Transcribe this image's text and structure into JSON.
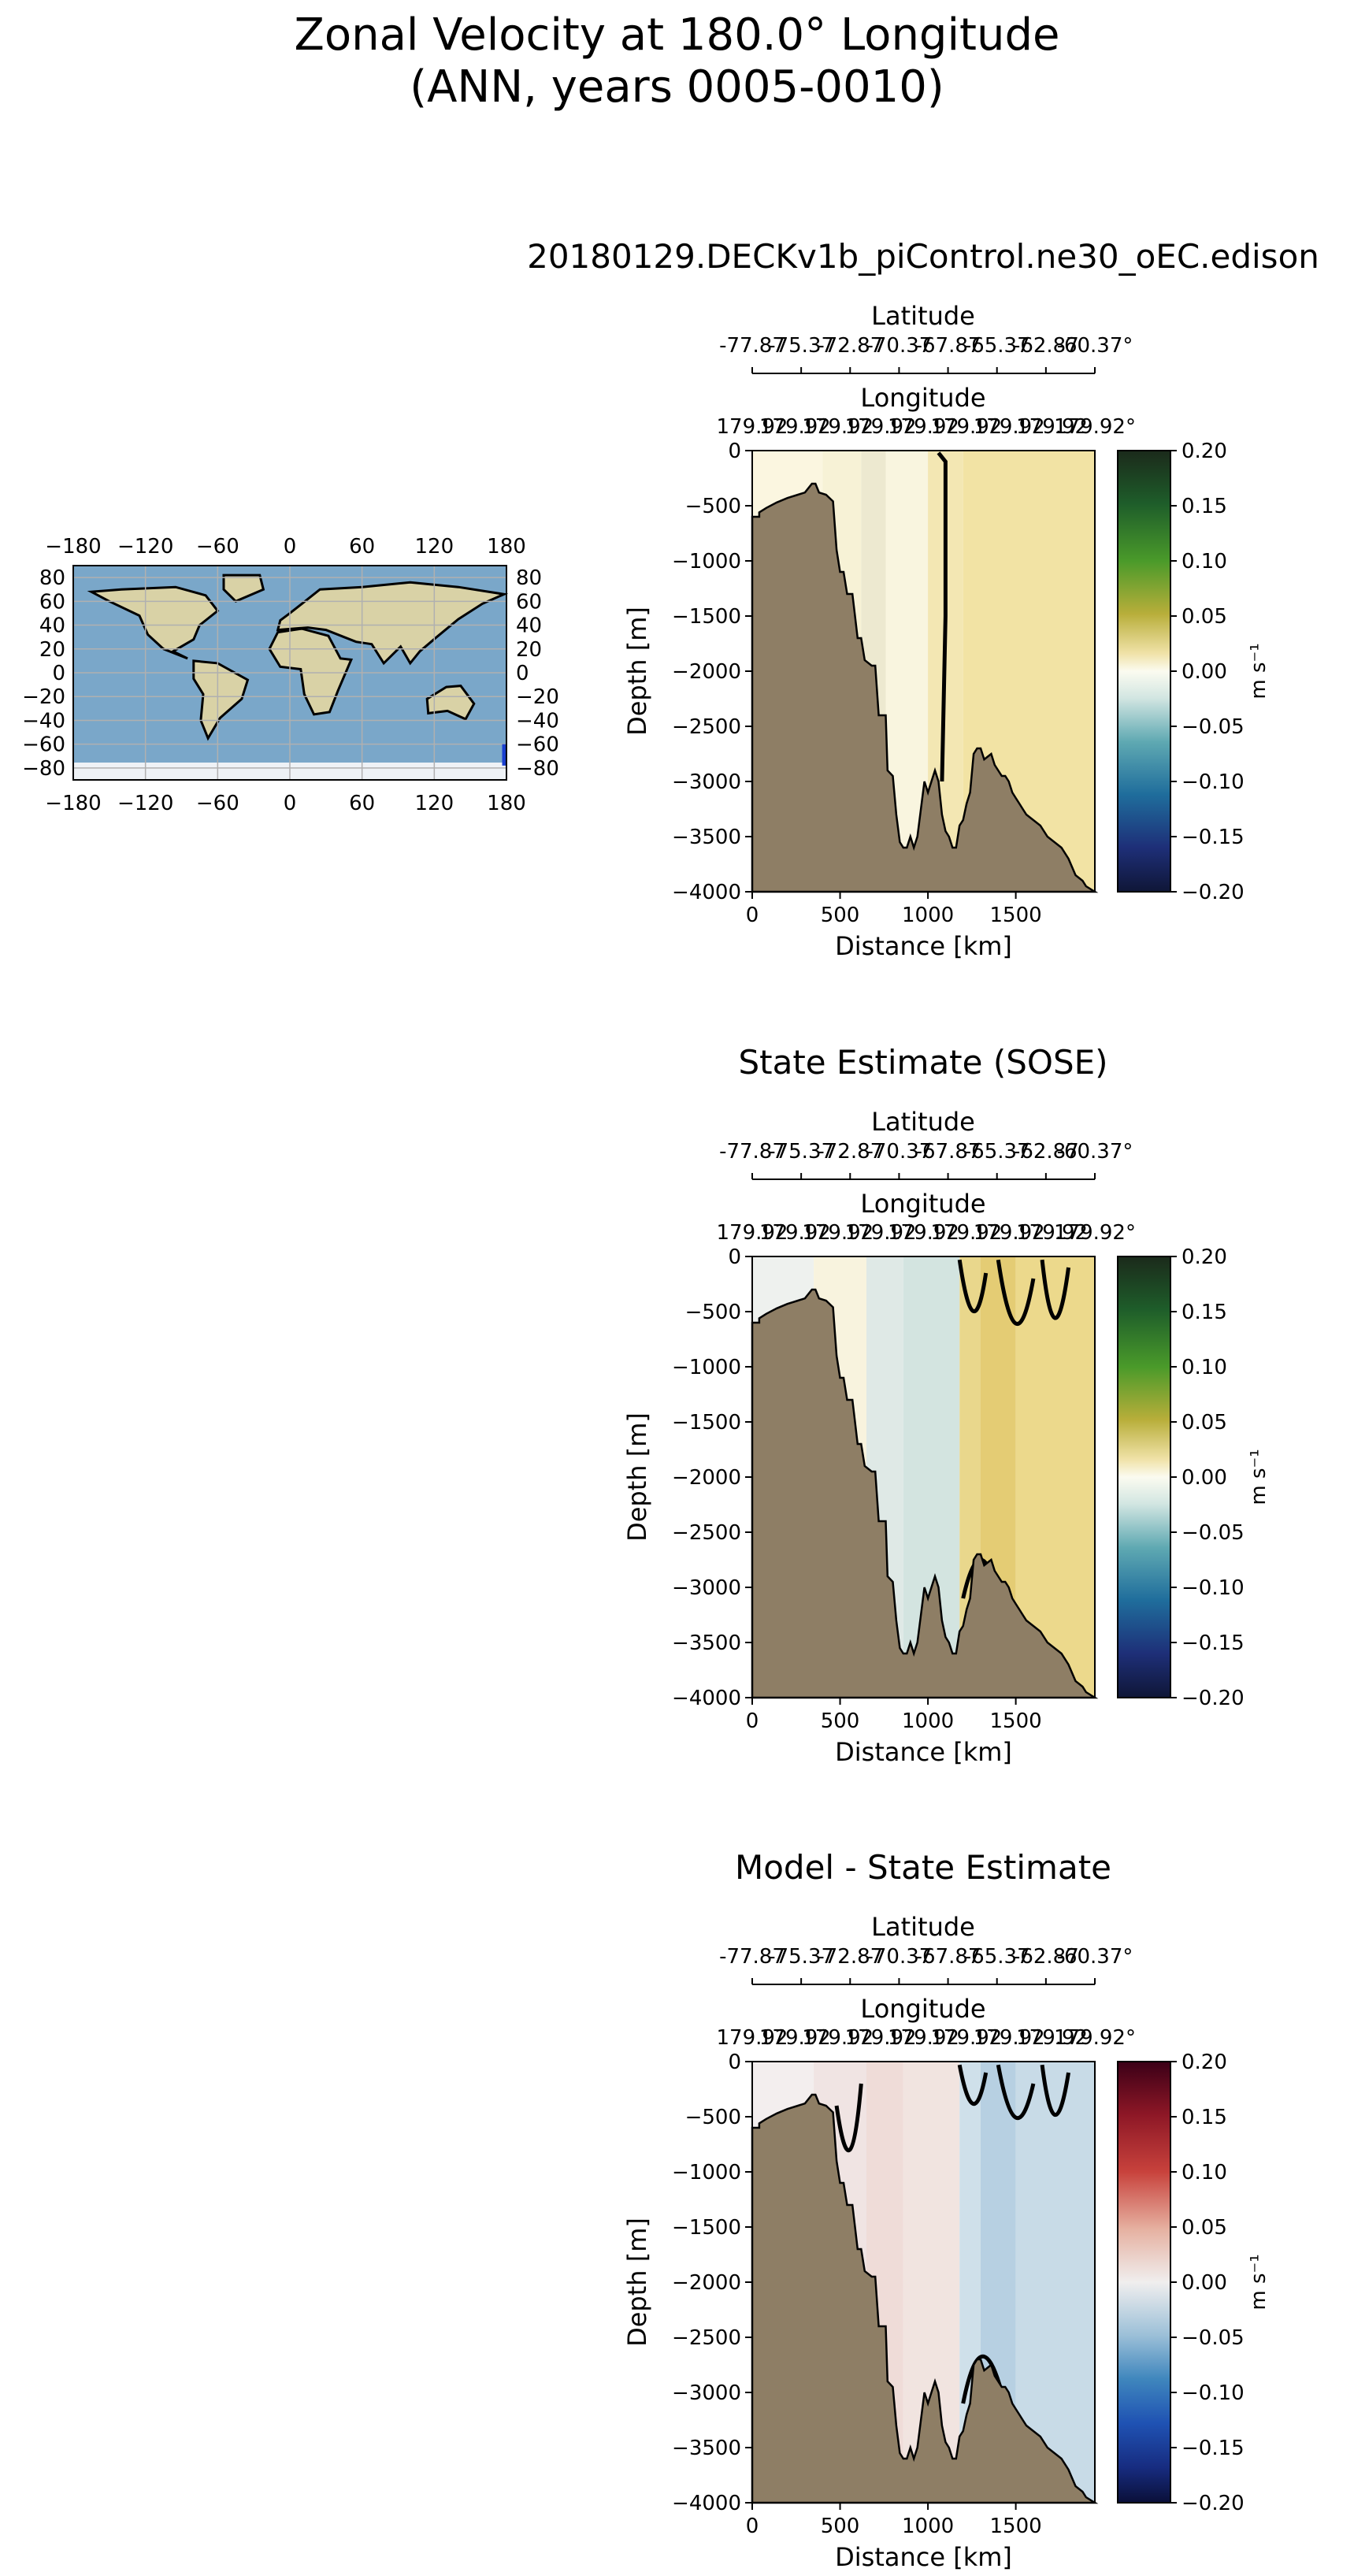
{
  "page": {
    "title_line1": "Zonal Velocity at 180.0° Longitude",
    "title_line2": "(ANN, years 0005-0010)"
  },
  "colors": {
    "bathymetry": "#8e7e65",
    "map_ocean": "#7aa7c9",
    "map_land": "#d9d2a6",
    "map_ice": "#eef2f6",
    "map_grid": "#b0b0b0"
  },
  "inset_map": {
    "lon_ticks": [
      "−180",
      "−120",
      "−60",
      "0",
      "60",
      "120",
      "180"
    ],
    "lat_ticks": [
      "80",
      "60",
      "40",
      "20",
      "0",
      "−20",
      "−40",
      "−60",
      "−80"
    ]
  },
  "chart_data": [
    {
      "type": "heatmap",
      "name": "model",
      "title": "20180129.DECKv1b_piControl.ne30_oEC.edison",
      "xlabel": "Distance [km]",
      "ylabel": "Depth [m]",
      "xlim": [
        0,
        1950
      ],
      "ylim": [
        -4000,
        0
      ],
      "x_ticks": [
        "0",
        "500",
        "1000",
        "1500"
      ],
      "y_ticks": [
        "0",
        "−500",
        "−1000",
        "−1500",
        "−2000",
        "−2500",
        "−3000",
        "−3500",
        "−4000"
      ],
      "lat_axis_label": "Latitude",
      "lat_ticks": [
        "-77.87",
        "-75.37",
        "-72.87",
        "-70.37",
        "-67.87",
        "-65.37",
        "-62.87",
        "-60.37°"
      ],
      "lon_axis_label": "Longitude",
      "lon_ticks": [
        "179.92",
        "179.92",
        "179.92",
        "179.92",
        "179.92",
        "179.92",
        "179.92",
        "179.92",
        "179.92°"
      ],
      "colorbar": {
        "colormap": "green-yellow-white-teal-blue",
        "ticks": [
          "0.20",
          "0.15",
          "0.10",
          "0.05",
          "0.00",
          "−0.05",
          "−0.10",
          "−0.15",
          "−0.20"
        ],
        "label": "m s⁻¹",
        "range": [
          -0.2,
          0.2
        ]
      }
    },
    {
      "type": "heatmap",
      "name": "sose",
      "title": "State Estimate (SOSE)",
      "xlabel": "Distance [km]",
      "ylabel": "Depth [m]",
      "xlim": [
        0,
        1950
      ],
      "ylim": [
        -4000,
        0
      ],
      "x_ticks": [
        "0",
        "500",
        "1000",
        "1500"
      ],
      "y_ticks": [
        "0",
        "−500",
        "−1000",
        "−1500",
        "−2000",
        "−2500",
        "−3000",
        "−3500",
        "−4000"
      ],
      "lat_axis_label": "Latitude",
      "lat_ticks": [
        "-77.87",
        "-75.37",
        "-72.87",
        "-70.37",
        "-67.87",
        "-65.37",
        "-62.87",
        "-60.37°"
      ],
      "lon_axis_label": "Longitude",
      "lon_ticks": [
        "179.92",
        "179.92",
        "179.92",
        "179.92",
        "179.92",
        "179.92",
        "179.92",
        "179.92",
        "179.92°"
      ],
      "colorbar": {
        "colormap": "green-yellow-white-teal-blue",
        "ticks": [
          "0.20",
          "0.15",
          "0.10",
          "0.05",
          "0.00",
          "−0.05",
          "−0.10",
          "−0.15",
          "−0.20"
        ],
        "label": "m s⁻¹",
        "range": [
          -0.2,
          0.2
        ]
      }
    },
    {
      "type": "heatmap",
      "name": "diff",
      "title": "Model - State Estimate",
      "xlabel": "Distance [km]",
      "ylabel": "Depth [m]",
      "xlim": [
        0,
        1950
      ],
      "ylim": [
        -4000,
        0
      ],
      "x_ticks": [
        "0",
        "500",
        "1000",
        "1500"
      ],
      "y_ticks": [
        "0",
        "−500",
        "−1000",
        "−1500",
        "−2000",
        "−2500",
        "−3000",
        "−3500",
        "−4000"
      ],
      "lat_axis_label": "Latitude",
      "lat_ticks": [
        "-77.87",
        "-75.37",
        "-72.87",
        "-70.37",
        "-67.87",
        "-65.37",
        "-62.87",
        "-60.37°"
      ],
      "lon_axis_label": "Longitude",
      "lon_ticks": [
        "179.92",
        "179.92",
        "179.92",
        "179.92",
        "179.92",
        "179.92",
        "179.92",
        "179.92",
        "179.92°"
      ],
      "colorbar": {
        "colormap": "red-white-blue",
        "ticks": [
          "0.20",
          "0.15",
          "0.10",
          "0.05",
          "0.00",
          "−0.05",
          "−0.10",
          "−0.15",
          "−0.20"
        ],
        "label": "m s⁻¹",
        "range": [
          -0.2,
          0.2
        ]
      }
    }
  ]
}
